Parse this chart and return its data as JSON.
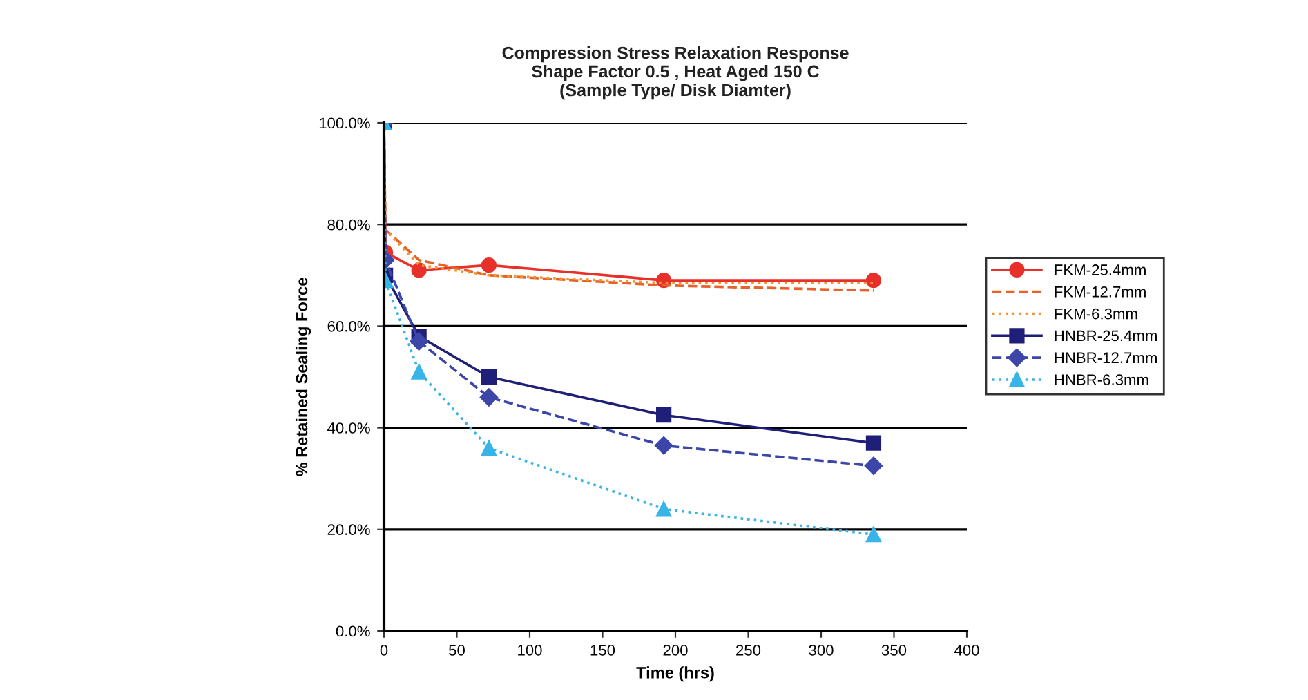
{
  "chart_data": {
    "type": "line",
    "title": "Compression Stress Relaxation Response\nShape Factor 0.5 , Heat Aged 150 C\n(Sample Type/ Disk Diamter)",
    "xlabel": "Time (hrs)",
    "ylabel": "% Retained Sealing Force",
    "x": [
      0,
      1,
      24,
      72,
      192,
      336
    ],
    "series": [
      {
        "name": "FKM-25.4mm",
        "color": "#e8302a",
        "marker": "circle",
        "line_style": "solid",
        "values": [
          100,
          74.5,
          71,
          72,
          69,
          69
        ]
      },
      {
        "name": "FKM-12.7mm",
        "color": "#e8602a",
        "marker": "none",
        "line_style": "dashed",
        "values": [
          100,
          79,
          73,
          70,
          68,
          67
        ]
      },
      {
        "name": "FKM-6.3mm",
        "color": "#f0962a",
        "marker": "none",
        "line_style": "dotted",
        "values": [
          100,
          79,
          72,
          70,
          68.5,
          68.5
        ]
      },
      {
        "name": "HNBR-25.4mm",
        "color": "#1f1f7a",
        "marker": "square",
        "line_style": "solid",
        "values": [
          100,
          70,
          58,
          50,
          42.5,
          37
        ]
      },
      {
        "name": "HNBR-12.7mm",
        "color": "#3c46a8",
        "marker": "diamond",
        "line_style": "dashed",
        "values": [
          100,
          73,
          57,
          46,
          36.5,
          32.5
        ]
      },
      {
        "name": "HNBR-6.3mm",
        "color": "#38b4e8",
        "marker": "triangle",
        "line_style": "dotted",
        "values": [
          100,
          69,
          51,
          36,
          24,
          19
        ]
      }
    ],
    "xlim": [
      0,
      400
    ],
    "xticks": [
      0,
      50,
      100,
      150,
      200,
      250,
      300,
      350,
      400
    ],
    "ylim": [
      0,
      100
    ],
    "yticks": [
      {
        "value": 0,
        "label": "0.0%"
      },
      {
        "value": 20,
        "label": "20.0%"
      },
      {
        "value": 40,
        "label": "40.0%"
      },
      {
        "value": 60,
        "label": "60.0%"
      },
      {
        "value": 80,
        "label": "80.0%"
      },
      {
        "value": 100,
        "label": "100.0%"
      }
    ],
    "grid": "y",
    "legend": "right"
  }
}
